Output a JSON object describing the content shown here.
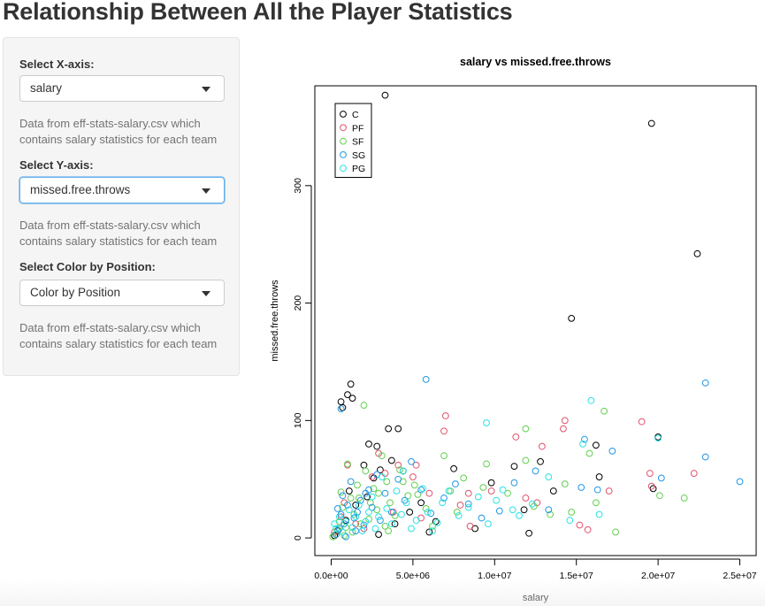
{
  "page": {
    "title": "Relationship Between All the Player Statistics"
  },
  "sidebar": {
    "x_axis": {
      "label": "Select X-axis:",
      "selected": "salary",
      "help": "Data from eff-stats-salary.csv which contains salary statistics for each team"
    },
    "y_axis": {
      "label": "Select Y-axis:",
      "selected": "missed.free.throws",
      "help": "Data from eff-stats-salary.csv which contains salary statistics for each team"
    },
    "color": {
      "label": "Select Color by Position:",
      "selected": "Color by Position",
      "help": "Data from eff-stats-salary.csv which contains salary statistics for each team"
    }
  },
  "icons": {
    "dropdown": "chevron-down-icon"
  },
  "chart_data": {
    "type": "scatter",
    "title": "salary  vs  missed.free.throws",
    "xlabel": "salary",
    "ylabel": "missed.free.throws",
    "xlim": [
      -1000000,
      26000000
    ],
    "ylim": [
      -15,
      385
    ],
    "x_ticks": [
      {
        "value": 0,
        "label": "0.0e+00"
      },
      {
        "value": 5000000,
        "label": "5.0e+06"
      },
      {
        "value": 10000000,
        "label": "1.0e+07"
      },
      {
        "value": 15000000,
        "label": "1.5e+07"
      },
      {
        "value": 20000000,
        "label": "2.0e+07"
      },
      {
        "value": 25000000,
        "label": "2.5e+07"
      }
    ],
    "y_ticks": [
      {
        "value": 0,
        "label": "0"
      },
      {
        "value": 100,
        "label": "100"
      },
      {
        "value": 200,
        "label": "200"
      },
      {
        "value": 300,
        "label": "300"
      }
    ],
    "legend_position": "top-left",
    "marker": "open-circle",
    "series": [
      {
        "name": "C",
        "color": "#000000",
        "points": [
          [
            3300000,
            377
          ],
          [
            19600000,
            353
          ],
          [
            22400000,
            242
          ],
          [
            14700000,
            187
          ],
          [
            1200000,
            131
          ],
          [
            1000000,
            122
          ],
          [
            1300000,
            119
          ],
          [
            600000,
            116
          ],
          [
            700000,
            111
          ],
          [
            3500000,
            93
          ],
          [
            4100000,
            93
          ],
          [
            2300000,
            80
          ],
          [
            2800000,
            78
          ],
          [
            3700000,
            66
          ],
          [
            3000000,
            58
          ],
          [
            4400000,
            57
          ],
          [
            2000000,
            62
          ],
          [
            2600000,
            51
          ],
          [
            7500000,
            59
          ],
          [
            9800000,
            47
          ],
          [
            11200000,
            61
          ],
          [
            12800000,
            65
          ],
          [
            16200000,
            79
          ],
          [
            20000000,
            86
          ],
          [
            19700000,
            42
          ],
          [
            12100000,
            4
          ],
          [
            8800000,
            8
          ],
          [
            6000000,
            5
          ],
          [
            4800000,
            22
          ],
          [
            2200000,
            35
          ],
          [
            1500000,
            28
          ],
          [
            900000,
            15
          ],
          [
            400000,
            6
          ],
          [
            200000,
            2
          ],
          [
            1100000,
            40
          ],
          [
            13600000,
            40
          ],
          [
            16400000,
            52
          ],
          [
            5500000,
            30
          ],
          [
            6400000,
            14
          ],
          [
            11800000,
            24
          ],
          [
            3900000,
            12
          ],
          [
            2900000,
            3
          ]
        ]
      },
      {
        "name": "PF",
        "color": "#DF536B",
        "points": [
          [
            7000000,
            104
          ],
          [
            6900000,
            91
          ],
          [
            14300000,
            100
          ],
          [
            14200000,
            93
          ],
          [
            19000000,
            99
          ],
          [
            11300000,
            86
          ],
          [
            12900000,
            78
          ],
          [
            5200000,
            62
          ],
          [
            4100000,
            62
          ],
          [
            2900000,
            72
          ],
          [
            2500000,
            52
          ],
          [
            1000000,
            62
          ],
          [
            11900000,
            34
          ],
          [
            12600000,
            30
          ],
          [
            15700000,
            7
          ],
          [
            15200000,
            11
          ],
          [
            7900000,
            28
          ],
          [
            8400000,
            38
          ],
          [
            8500000,
            10
          ],
          [
            5500000,
            17
          ],
          [
            5000000,
            52
          ],
          [
            3800000,
            22
          ],
          [
            2000000,
            8
          ],
          [
            1500000,
            12
          ],
          [
            800000,
            30
          ],
          [
            600000,
            18
          ],
          [
            200000,
            5
          ],
          [
            19500000,
            55
          ],
          [
            19600000,
            44
          ],
          [
            22200000,
            55
          ],
          [
            17000000,
            40
          ],
          [
            6000000,
            38
          ],
          [
            3300000,
            55
          ],
          [
            9800000,
            40
          ]
        ]
      },
      {
        "name": "SF",
        "color": "#61D04F",
        "points": [
          [
            2000000,
            113
          ],
          [
            16700000,
            108
          ],
          [
            6900000,
            70
          ],
          [
            9500000,
            63
          ],
          [
            11900000,
            66
          ],
          [
            11900000,
            93
          ],
          [
            14300000,
            46
          ],
          [
            15800000,
            72
          ],
          [
            14700000,
            22
          ],
          [
            20100000,
            36
          ],
          [
            21600000,
            34
          ],
          [
            16200000,
            30
          ],
          [
            10800000,
            38
          ],
          [
            9300000,
            43
          ],
          [
            8100000,
            51
          ],
          [
            7300000,
            40
          ],
          [
            5800000,
            25
          ],
          [
            5100000,
            45
          ],
          [
            4700000,
            36
          ],
          [
            4400000,
            48
          ],
          [
            3900000,
            19
          ],
          [
            3600000,
            30
          ],
          [
            3300000,
            10
          ],
          [
            3100000,
            70
          ],
          [
            2800000,
            24
          ],
          [
            2600000,
            42
          ],
          [
            2400000,
            30
          ],
          [
            2100000,
            57
          ],
          [
            1800000,
            12
          ],
          [
            1600000,
            45
          ],
          [
            1400000,
            20
          ],
          [
            1200000,
            34
          ],
          [
            1000000,
            63
          ],
          [
            900000,
            9
          ],
          [
            700000,
            26
          ],
          [
            500000,
            14
          ],
          [
            300000,
            3
          ],
          [
            100000,
            1
          ],
          [
            600000,
            39
          ],
          [
            1300000,
            5
          ],
          [
            2300000,
            16
          ],
          [
            3500000,
            6
          ],
          [
            4200000,
            58
          ],
          [
            5300000,
            37
          ],
          [
            6200000,
            10
          ],
          [
            7700000,
            22
          ],
          [
            12400000,
            27
          ],
          [
            13400000,
            20
          ],
          [
            17400000,
            5
          ],
          [
            400000,
            7
          ],
          [
            800000,
            2
          ],
          [
            1700000,
            34
          ],
          [
            2900000,
            38
          ],
          [
            3400000,
            48
          ]
        ]
      },
      {
        "name": "SG",
        "color": "#2297E6",
        "points": [
          [
            5800000,
            135
          ],
          [
            22900000,
            132
          ],
          [
            25000000,
            48
          ],
          [
            22900000,
            69
          ],
          [
            20200000,
            51
          ],
          [
            17200000,
            74
          ],
          [
            16300000,
            41
          ],
          [
            15500000,
            84
          ],
          [
            15300000,
            43
          ],
          [
            12500000,
            57
          ],
          [
            11200000,
            47
          ],
          [
            10300000,
            23
          ],
          [
            9200000,
            17
          ],
          [
            8400000,
            29
          ],
          [
            7600000,
            46
          ],
          [
            6900000,
            34
          ],
          [
            6100000,
            21
          ],
          [
            5500000,
            41
          ],
          [
            4900000,
            65
          ],
          [
            4500000,
            32
          ],
          [
            4100000,
            50
          ],
          [
            3700000,
            22
          ],
          [
            3300000,
            38
          ],
          [
            3000000,
            15
          ],
          [
            2800000,
            54
          ],
          [
            2500000,
            26
          ],
          [
            2300000,
            41
          ],
          [
            2000000,
            11
          ],
          [
            1800000,
            32
          ],
          [
            1600000,
            22
          ],
          [
            1400000,
            17
          ],
          [
            1200000,
            48
          ],
          [
            1000000,
            28
          ],
          [
            800000,
            12
          ],
          [
            700000,
            36
          ],
          [
            600000,
            20
          ],
          [
            500000,
            8
          ],
          [
            400000,
            25
          ],
          [
            300000,
            3
          ],
          [
            1500000,
            6
          ],
          [
            2100000,
            38
          ],
          [
            900000,
            1
          ],
          [
            13300000,
            24
          ],
          [
            600000,
            110
          ]
        ]
      },
      {
        "name": "PG",
        "color": "#28E2E5",
        "points": [
          [
            15900000,
            117
          ],
          [
            9500000,
            98
          ],
          [
            20000000,
            85
          ],
          [
            15400000,
            80
          ],
          [
            13300000,
            52
          ],
          [
            12300000,
            29
          ],
          [
            11500000,
            19
          ],
          [
            10500000,
            41
          ],
          [
            10100000,
            32
          ],
          [
            9600000,
            12
          ],
          [
            9000000,
            35
          ],
          [
            8400000,
            26
          ],
          [
            7800000,
            19
          ],
          [
            7200000,
            40
          ],
          [
            6800000,
            30
          ],
          [
            6500000,
            13
          ],
          [
            6200000,
            6
          ],
          [
            5900000,
            22
          ],
          [
            5600000,
            42
          ],
          [
            5200000,
            15
          ],
          [
            4900000,
            8
          ],
          [
            4600000,
            30
          ],
          [
            4300000,
            20
          ],
          [
            4000000,
            40
          ],
          [
            3700000,
            12
          ],
          [
            3400000,
            25
          ],
          [
            3100000,
            52
          ],
          [
            2900000,
            18
          ],
          [
            2700000,
            8
          ],
          [
            2500000,
            35
          ],
          [
            2300000,
            22
          ],
          [
            2100000,
            14
          ],
          [
            1900000,
            6
          ],
          [
            1700000,
            28
          ],
          [
            1500000,
            18
          ],
          [
            1300000,
            9
          ],
          [
            1100000,
            24
          ],
          [
            900000,
            14
          ],
          [
            700000,
            5
          ],
          [
            500000,
            18
          ],
          [
            300000,
            8
          ],
          [
            200000,
            12
          ],
          [
            16400000,
            20
          ],
          [
            4400000,
            57
          ],
          [
            14600000,
            15
          ],
          [
            11100000,
            24
          ]
        ]
      }
    ]
  }
}
